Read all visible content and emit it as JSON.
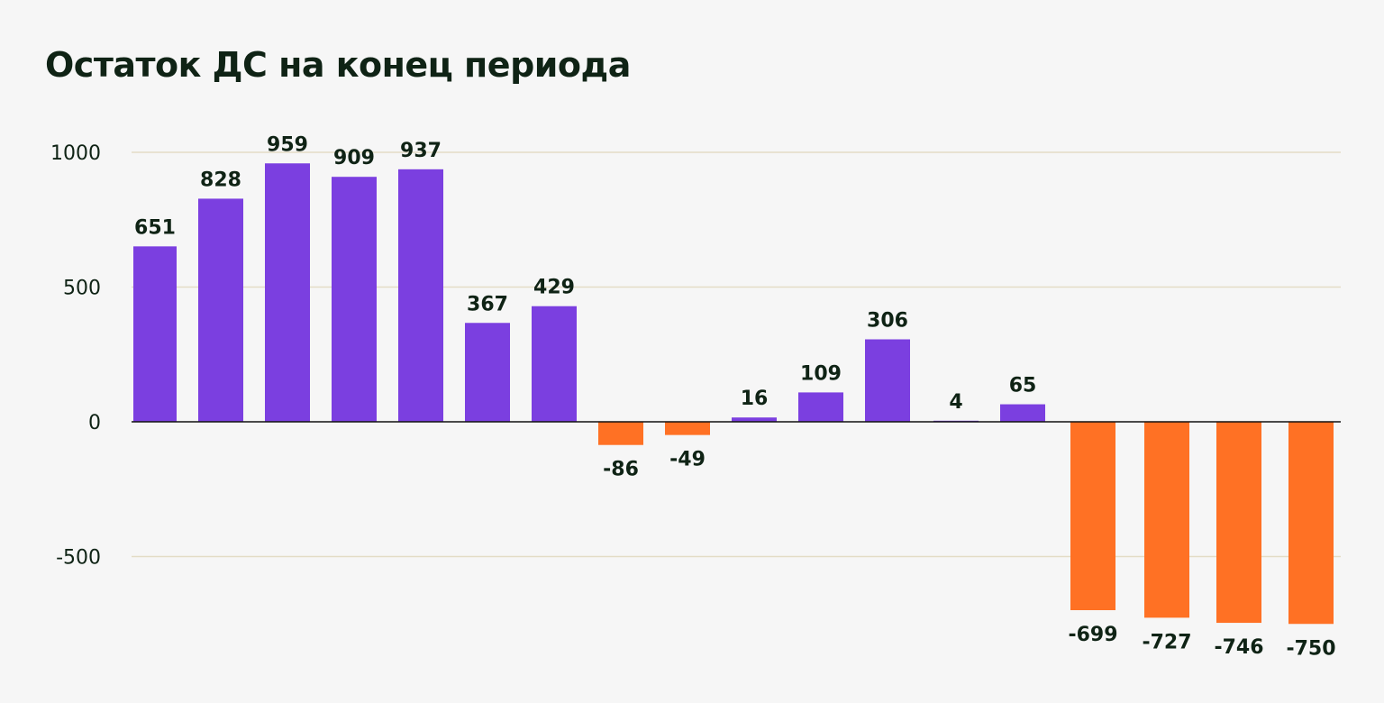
{
  "chart_data": {
    "type": "bar",
    "title": "Остаток ДС на конец периода",
    "xlabel": "",
    "ylabel": "",
    "ylim": [
      -800,
      1000
    ],
    "yticks": [
      1000,
      500,
      0,
      -500
    ],
    "grid": true,
    "values": [
      651,
      828,
      959,
      909,
      937,
      367,
      429,
      -86,
      -49,
      16,
      109,
      306,
      4,
      65,
      -699,
      -727,
      -746,
      -750
    ],
    "colors": {
      "positive": "#7b3fe0",
      "negative": "#ff7124",
      "grid": "#e3dcc6",
      "axis": "#111111"
    }
  }
}
